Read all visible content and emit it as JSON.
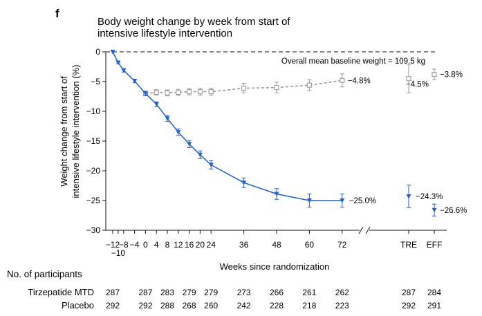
{
  "panel_label": "f",
  "chart_data": {
    "type": "line",
    "title": "Body weight change by week from start of intensive lifestyle intervention",
    "title_lines": [
      "Body weight change by week from start of",
      "intensive lifestyle intervention"
    ],
    "xlabel": "Weeks since randomization",
    "ylabel": "Weight change from start of intensive lifestyle intervention (%)",
    "ylabel_lines": [
      "Weight change from start of",
      "intensive lifestyle intervention (%)"
    ],
    "ylim": [
      -30,
      0
    ],
    "yticks": [
      0,
      -5,
      -10,
      -15,
      -20,
      -25,
      -30
    ],
    "ytick_labels": [
      "0",
      "-5",
      "-10",
      "-15",
      "-20",
      "-25",
      "-30"
    ],
    "x_ticks": [
      -12,
      -10,
      -8,
      -4,
      0,
      4,
      8,
      12,
      16,
      20,
      24,
      36,
      48,
      60,
      72
    ],
    "x_tick_labels": [
      {
        "x": -12,
        "text": "-12",
        "row": 1
      },
      {
        "x": -10,
        "text": "-10",
        "row": 2
      },
      {
        "x": -8,
        "text": "-8",
        "row": 1
      },
      {
        "x": -4,
        "text": "-4",
        "row": 1
      },
      {
        "x": 0,
        "text": "0",
        "row": 1
      },
      {
        "x": 4,
        "text": "4",
        "row": 1
      },
      {
        "x": 8,
        "text": "8",
        "row": 1
      },
      {
        "x": 12,
        "text": "12",
        "row": 1
      },
      {
        "x": 16,
        "text": "16",
        "row": 1
      },
      {
        "x": 20,
        "text": "20",
        "row": 1
      },
      {
        "x": 24,
        "text": "24",
        "row": 1
      },
      {
        "x": 36,
        "text": "36",
        "row": 1
      },
      {
        "x": 48,
        "text": "48",
        "row": 1
      },
      {
        "x": 60,
        "text": "60",
        "row": 1
      },
      {
        "x": 72,
        "text": "72",
        "row": 1
      }
    ],
    "extra_categories": [
      "TRE",
      "EFF"
    ],
    "reference_line": {
      "y": 0,
      "label": "Overall mean baseline weight = 109.5 kg"
    },
    "grid": false,
    "series": [
      {
        "color": "#1f5fd6",
        "marker": "filled-triangle-down",
        "line": "solid",
        "x": [
          -12,
          -10,
          -8,
          -4,
          0,
          4,
          8,
          12,
          16,
          20,
          24,
          36,
          48,
          60,
          72
        ],
        "y": [
          0,
          -1.8,
          -3.1,
          -4.9,
          -7.0,
          -8.8,
          -11.2,
          -13.5,
          -15.5,
          -17.3,
          -19.0,
          -22.0,
          -23.9,
          -25.0,
          -25.0
        ],
        "err": [
          0,
          0.2,
          0.3,
          0.3,
          0.35,
          0.4,
          0.5,
          0.55,
          0.6,
          0.65,
          0.7,
          0.8,
          0.9,
          1.1,
          1.1
        ],
        "end_label": "−25.0%",
        "summary": [
          {
            "x": "TRE",
            "y": -24.3,
            "err": 1.9,
            "label": "−24.3%"
          },
          {
            "x": "EFF",
            "y": -26.6,
            "err": 1.0,
            "label": "−26.6%"
          }
        ]
      },
      {
        "color": "#9a9a9a",
        "marker": "open-square",
        "line": "dashed",
        "x": [
          0,
          4,
          8,
          12,
          16,
          20,
          24,
          36,
          48,
          60,
          72
        ],
        "y": [
          -7.0,
          -6.8,
          -6.9,
          -6.8,
          -6.7,
          -6.7,
          -6.7,
          -6.1,
          -6.0,
          -5.6,
          -4.8
        ],
        "err": [
          0.4,
          0.45,
          0.5,
          0.5,
          0.55,
          0.6,
          0.6,
          0.8,
          0.9,
          0.9,
          1.1
        ],
        "end_label": "−4.8%",
        "summary": [
          {
            "x": "TRE",
            "y": -4.5,
            "err": 2.4,
            "label": "−4.5%"
          },
          {
            "x": "EFF",
            "y": -3.8,
            "err": 0.9,
            "label": "−3.8%"
          }
        ]
      }
    ],
    "participants_table": {
      "header": "No. of participants",
      "columns": [
        -12,
        0,
        8,
        16,
        24,
        36,
        48,
        60,
        72,
        "TRE",
        "EFF"
      ],
      "rows": [
        {
          "label": "Tirzepatide MTD",
          "values": [
            "287",
            "287",
            "283",
            "279",
            "279",
            "273",
            "266",
            "261",
            "262",
            "287",
            "284"
          ]
        },
        {
          "label": "Placebo",
          "values": [
            "292",
            "292",
            "288",
            "268",
            "260",
            "242",
            "228",
            "218",
            "223",
            "292",
            "291"
          ]
        }
      ]
    }
  }
}
